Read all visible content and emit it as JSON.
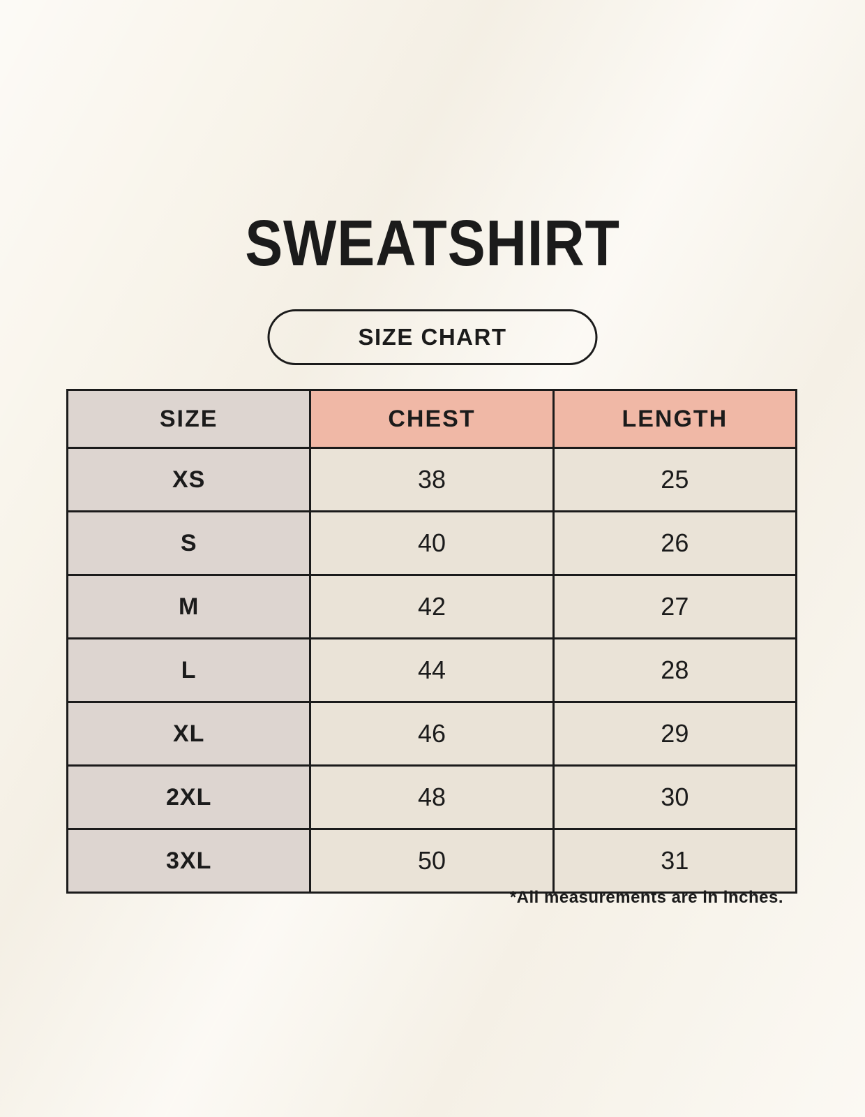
{
  "page": {
    "title": "SWEATSHIRT",
    "button_label": "SIZE CHART",
    "footnote": "*All measurements are in inches."
  },
  "colors": {
    "page_bg": "#f9f5ec",
    "size_col_bg": "#ddd5d0",
    "measure_header_bg": "#f0b8a6",
    "data_cell_bg": "#eae3d7",
    "border": "#1b1b1b",
    "text": "#1b1b1b"
  },
  "chart_data": {
    "type": "table",
    "title": "SWEATSHIRT",
    "columns": [
      "SIZE",
      "CHEST",
      "LENGTH"
    ],
    "rows": [
      [
        "XS",
        38,
        25
      ],
      [
        "S",
        40,
        26
      ],
      [
        "M",
        42,
        27
      ],
      [
        "L",
        44,
        28
      ],
      [
        "XL",
        46,
        29
      ],
      [
        "2XL",
        48,
        30
      ],
      [
        "3XL",
        50,
        31
      ]
    ],
    "note": "*All measurements are in inches."
  }
}
